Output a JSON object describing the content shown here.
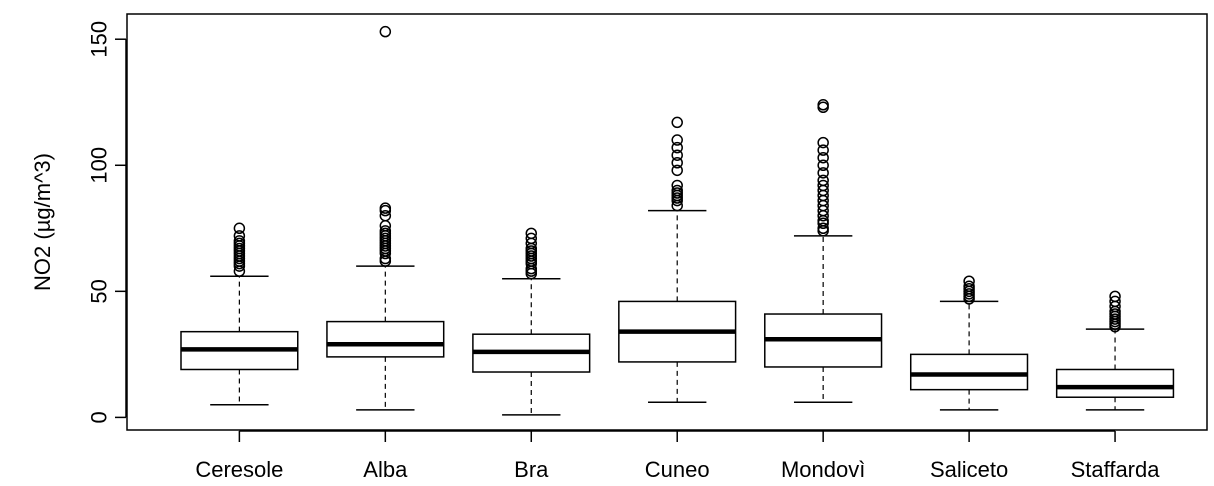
{
  "chart_data": {
    "type": "boxplot",
    "title": "",
    "xlabel": "",
    "ylabel": "NO2 (µg/m^3)",
    "ylim": [
      -5,
      160
    ],
    "yticks": [
      0,
      50,
      100,
      150
    ],
    "ytick_labels": [
      "0",
      "50",
      "100",
      "150"
    ],
    "grid": false,
    "legend": "none",
    "categories": [
      "Ceresole",
      "Alba",
      "Bra",
      "Cuneo",
      "Mondovì",
      "Saliceto",
      "Staffarda"
    ],
    "boxes": [
      {
        "name": "Ceresole",
        "whisker_low": 5,
        "q1": 19,
        "median": 27,
        "q3": 34,
        "whisker_high": 56,
        "outliers": [
          58,
          60,
          61,
          62,
          63,
          64,
          65,
          66,
          67,
          68,
          69,
          70,
          72,
          75
        ]
      },
      {
        "name": "Alba",
        "whisker_low": 3,
        "q1": 24,
        "median": 29,
        "q3": 38,
        "whisker_high": 60,
        "outliers": [
          62,
          63,
          65,
          66,
          67,
          68,
          69,
          70,
          71,
          72,
          73,
          74,
          76,
          80,
          82,
          83,
          153
        ]
      },
      {
        "name": "Bra",
        "whisker_low": 1,
        "q1": 18,
        "median": 26,
        "q3": 33,
        "whisker_high": 55,
        "outliers": [
          57,
          58,
          59,
          61,
          62,
          63,
          64,
          65,
          66,
          67,
          69,
          71,
          73
        ]
      },
      {
        "name": "Cuneo",
        "whisker_low": 6,
        "q1": 22,
        "median": 34,
        "q3": 46,
        "whisker_high": 82,
        "outliers": [
          84,
          86,
          87,
          88,
          89,
          90,
          92,
          98,
          101,
          104,
          107,
          110,
          117
        ]
      },
      {
        "name": "Mondovì",
        "whisker_low": 6,
        "q1": 20,
        "median": 31,
        "q3": 41,
        "whisker_high": 72,
        "outliers": [
          74,
          75,
          77,
          78,
          80,
          82,
          84,
          86,
          88,
          90,
          92,
          94,
          97,
          100,
          103,
          106,
          109,
          123,
          124
        ]
      },
      {
        "name": "Saliceto",
        "whisker_low": 3,
        "q1": 11,
        "median": 17,
        "q3": 25,
        "whisker_high": 46,
        "outliers": [
          47,
          48,
          49,
          50,
          51,
          52,
          54
        ]
      },
      {
        "name": "Staffarda",
        "whisker_low": 3,
        "q1": 8,
        "median": 12,
        "q3": 19,
        "whisker_high": 35,
        "outliers": [
          36,
          37,
          38,
          39,
          40,
          41,
          42,
          44,
          46,
          48
        ]
      }
    ]
  }
}
